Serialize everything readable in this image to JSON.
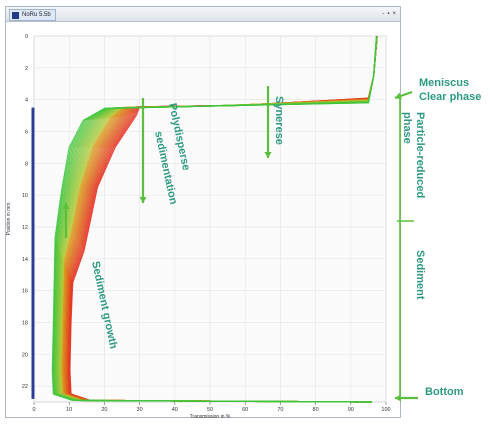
{
  "window": {
    "title": "NoRu 5.5b",
    "controls": [
      "-",
      "▪",
      "×"
    ]
  },
  "chart_data": {
    "type": "line",
    "xlabel": "Transmission in %",
    "ylabel": "Position in mm",
    "xlim": [
      0,
      100
    ],
    "ylim": [
      0,
      23
    ],
    "x_ticks": [
      "0",
      "10",
      "20",
      "30",
      "40",
      "50",
      "60",
      "70",
      "80",
      "90",
      "100"
    ],
    "y_ticks": [
      "0",
      "2",
      "4",
      "6",
      "8",
      "10",
      "12",
      "14",
      "16",
      "18",
      "20",
      "22"
    ],
    "grid": true,
    "annotations": {
      "meniscus": "Meniscus",
      "clear_phase": "Clear phase",
      "particle_reduced": "Particle-reduced phase",
      "sediment": "Sediment",
      "bottom": "Bottom",
      "syneresis": "Synerese",
      "polydisperse": "Polydisperse sedimentation",
      "sediment_growth": "Sediment growth"
    },
    "colors": {
      "early_profiles": "#e5251b",
      "late_profiles": "#3cc43c",
      "annotation": "#2e9a82",
      "arrow": "#5bbf3c",
      "axis_bar": "#2c3c9a"
    }
  }
}
